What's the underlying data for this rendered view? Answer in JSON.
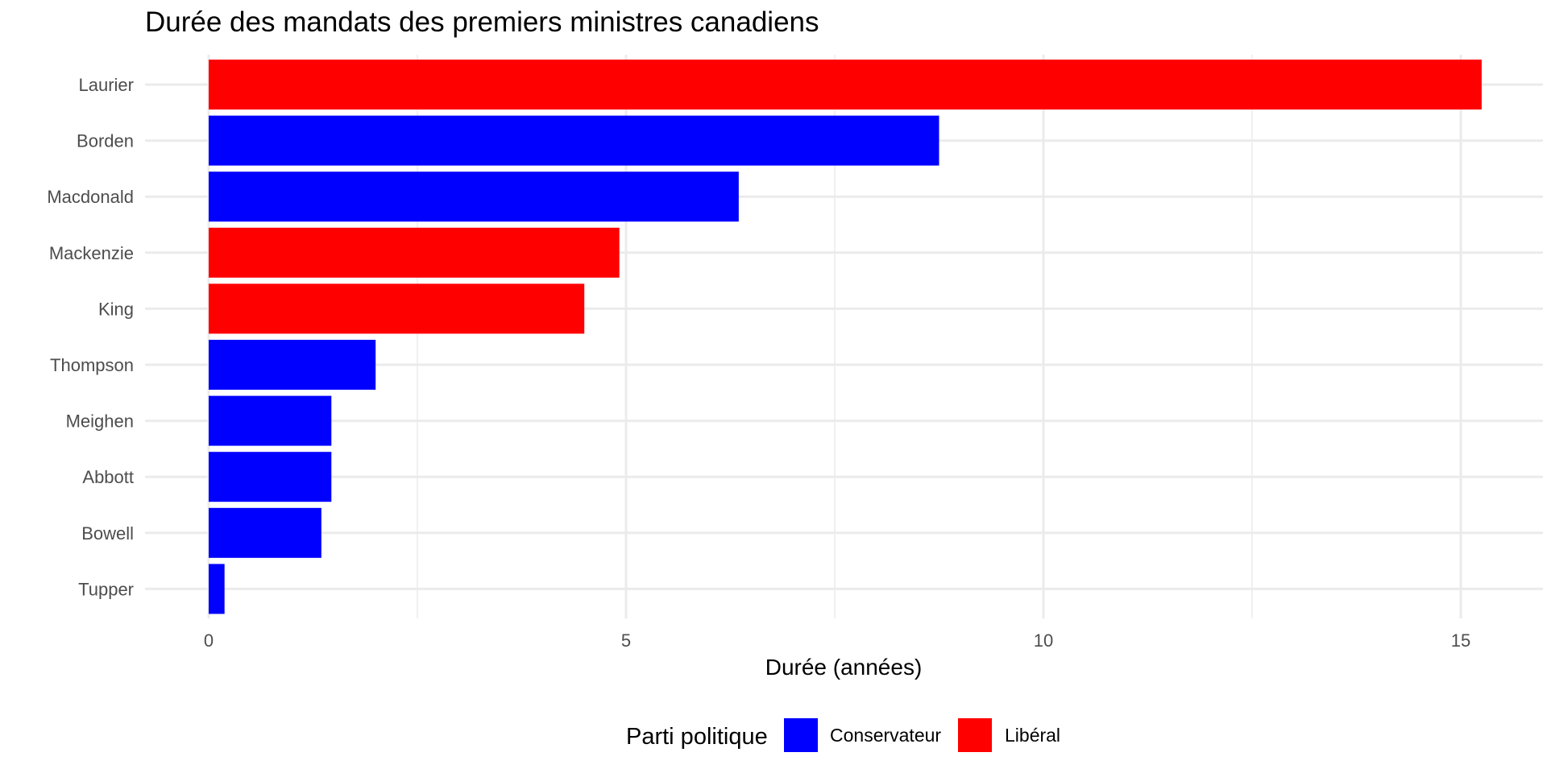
{
  "chart_data": {
    "type": "bar",
    "orientation": "horizontal",
    "title": "Durée des mandats des premiers ministres canadiens",
    "xlabel": "Durée (années)",
    "ylabel": "",
    "xlim": [
      0,
      15.6
    ],
    "xticks": [
      0,
      5,
      10,
      15
    ],
    "grid": true,
    "categories": [
      "Laurier",
      "Borden",
      "Macdonald",
      "Mackenzie",
      "King",
      "Thompson",
      "Meighen",
      "Abbott",
      "Bowell",
      "Tupper"
    ],
    "values": [
      15.25,
      8.75,
      6.35,
      4.92,
      4.5,
      2.0,
      1.47,
      1.47,
      1.35,
      0.19
    ],
    "party": [
      "Libéral",
      "Conservateur",
      "Conservateur",
      "Libéral",
      "Libéral",
      "Conservateur",
      "Conservateur",
      "Conservateur",
      "Conservateur",
      "Conservateur"
    ],
    "legend": {
      "title": "Parti politique",
      "placement": "bottom",
      "entries": [
        {
          "label": "Conservateur",
          "color": "#0000ff"
        },
        {
          "label": "Libéral",
          "color": "#ff0000"
        }
      ]
    }
  }
}
